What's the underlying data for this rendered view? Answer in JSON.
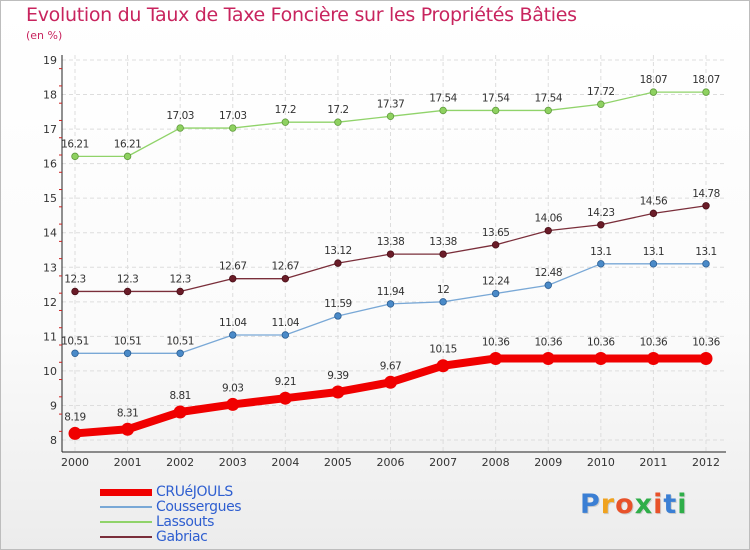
{
  "header": {
    "title": "Evolution du Taux de Taxe Foncière sur les Propriétés Bâties",
    "subtitle": "(en %)"
  },
  "logo": {
    "text": "Proxiti",
    "letter_colors": [
      "#3b7fd4",
      "#f0a21e",
      "#e8522a",
      "#2fae49",
      "#e8522a",
      "#3b7fd4",
      "#2fae49"
    ]
  },
  "chart_data": {
    "type": "line",
    "x": [
      "2000",
      "2001",
      "2002",
      "2003",
      "2004",
      "2005",
      "2006",
      "2007",
      "2008",
      "2009",
      "2010",
      "2011",
      "2012"
    ],
    "ylim": [
      8,
      19
    ],
    "yticks": [
      8,
      9,
      10,
      11,
      12,
      13,
      14,
      15,
      16,
      17,
      18,
      19
    ],
    "grid": true,
    "legend_position": "bottom-left",
    "series": [
      {
        "name": "Lassouts",
        "color": "#90d36a",
        "line_width": 1.3,
        "marker_fill": "#8ed160",
        "marker_stroke": "#5f9a3c",
        "values": [
          16.21,
          16.21,
          17.03,
          17.03,
          17.2,
          17.2,
          17.37,
          17.54,
          17.54,
          17.54,
          17.72,
          18.07,
          18.07
        ],
        "labels": [
          "16.21",
          "16.21",
          "17.03",
          "17.03",
          "17.2",
          "17.2",
          "17.37",
          "17.54",
          "17.54",
          "17.54",
          "17.72",
          "18.07",
          "18.07"
        ]
      },
      {
        "name": "Gabriac",
        "color": "#7a2e3a",
        "line_width": 1.3,
        "marker_fill": "#6a1c28",
        "marker_stroke": "#4a0f18",
        "values": [
          12.3,
          12.3,
          12.3,
          12.67,
          12.67,
          13.12,
          13.38,
          13.38,
          13.65,
          14.06,
          14.23,
          14.56,
          14.78
        ],
        "labels": [
          "12.3",
          "12.3",
          "12.3",
          "12.67",
          "12.67",
          "13.12",
          "13.38",
          "13.38",
          "13.65",
          "14.06",
          "14.23",
          "14.56",
          "14.78"
        ]
      },
      {
        "name": "Coussergues",
        "color": "#79a8d6",
        "line_width": 1.3,
        "marker_fill": "#4a8ac8",
        "marker_stroke": "#2a5d92",
        "values": [
          10.51,
          10.51,
          10.51,
          11.04,
          11.04,
          11.59,
          11.94,
          12,
          12.24,
          12.48,
          13.1,
          13.1,
          13.1
        ],
        "labels": [
          "10.51",
          "10.51",
          "10.51",
          "11.04",
          "11.04",
          "11.59",
          "11.94",
          "12",
          "12.24",
          "12.48",
          "13.1",
          "13.1",
          "13.1"
        ]
      },
      {
        "name": "CRUéJOULS",
        "color": "#f00000",
        "line_width": 8,
        "marker_fill": "#f00000",
        "marker_stroke": "#f00000",
        "values": [
          8.19,
          8.31,
          8.81,
          9.03,
          9.21,
          9.39,
          9.67,
          10.15,
          10.36,
          10.36,
          10.36,
          10.36,
          10.36
        ],
        "labels": [
          "8.19",
          "8.31",
          "8.81",
          "9.03",
          "9.21",
          "9.39",
          "9.67",
          "10.15",
          "10.36",
          "10.36",
          "10.36",
          "10.36",
          "10.36"
        ]
      }
    ],
    "legend_order": [
      "CRUéJOULS",
      "Coussergues",
      "Lassouts",
      "Gabriac"
    ]
  }
}
